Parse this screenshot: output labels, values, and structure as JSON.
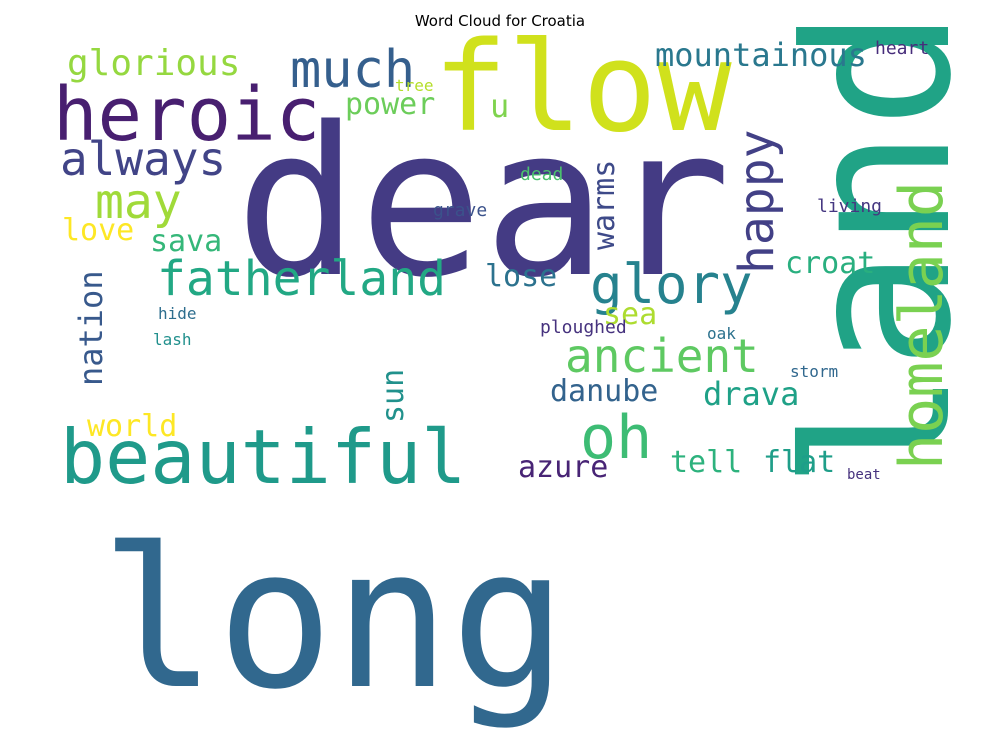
{
  "title": "Word Cloud for Croatia",
  "colors": {
    "background": "#ffffff",
    "palette": "viridis"
  },
  "words": [
    {
      "text": "dear",
      "color": "#443b84"
    },
    {
      "text": "long",
      "color": "#31688e"
    },
    {
      "text": "land",
      "color": "#20a386"
    },
    {
      "text": "flow",
      "color": "#d0e11c"
    },
    {
      "text": "heroic",
      "color": "#481f70"
    },
    {
      "text": "beautiful",
      "color": "#1f9a8a"
    },
    {
      "text": "homeland",
      "color": "#7ad151"
    },
    {
      "text": "much",
      "color": "#355f8d"
    },
    {
      "text": "always",
      "color": "#414487"
    },
    {
      "text": "fatherland",
      "color": "#22a884"
    },
    {
      "text": "glory",
      "color": "#26828e"
    },
    {
      "text": "ancient",
      "color": "#5ec962"
    },
    {
      "text": "oh",
      "color": "#3dbc74"
    },
    {
      "text": "may",
      "color": "#a0da39"
    },
    {
      "text": "happy",
      "color": "#424086"
    },
    {
      "text": "glorious",
      "color": "#95d840"
    },
    {
      "text": "mountainous",
      "color": "#2a788e"
    },
    {
      "text": "power",
      "color": "#6ccd5a"
    },
    {
      "text": "u",
      "color": "#7fd34e"
    },
    {
      "text": "warms",
      "color": "#3e4a89"
    },
    {
      "text": "love",
      "color": "#fde725"
    },
    {
      "text": "sava",
      "color": "#35b779"
    },
    {
      "text": "croat",
      "color": "#29af7f"
    },
    {
      "text": "lose",
      "color": "#2c728e"
    },
    {
      "text": "sea",
      "color": "#addc30"
    },
    {
      "text": "nation",
      "color": "#38598c"
    },
    {
      "text": "danube",
      "color": "#33638d"
    },
    {
      "text": "drava",
      "color": "#1fa187"
    },
    {
      "text": "sun",
      "color": "#21918c"
    },
    {
      "text": "world",
      "color": "#fde725"
    },
    {
      "text": "azure",
      "color": "#482475"
    },
    {
      "text": "tell",
      "color": "#2db27d"
    },
    {
      "text": "flat",
      "color": "#1f9e89"
    },
    {
      "text": "heart",
      "color": "#472d7b"
    },
    {
      "text": "tree",
      "color": "#b5de2b"
    },
    {
      "text": "dead",
      "color": "#4ac16d"
    },
    {
      "text": "grave",
      "color": "#3b528b"
    },
    {
      "text": "living",
      "color": "#453781"
    },
    {
      "text": "hide",
      "color": "#2e6e8e"
    },
    {
      "text": "lash",
      "color": "#21908d"
    },
    {
      "text": "ploughed",
      "color": "#46327e"
    },
    {
      "text": "oak",
      "color": "#2c728e"
    },
    {
      "text": "storm",
      "color": "#31688e"
    },
    {
      "text": "beat",
      "color": "#46327e"
    }
  ]
}
